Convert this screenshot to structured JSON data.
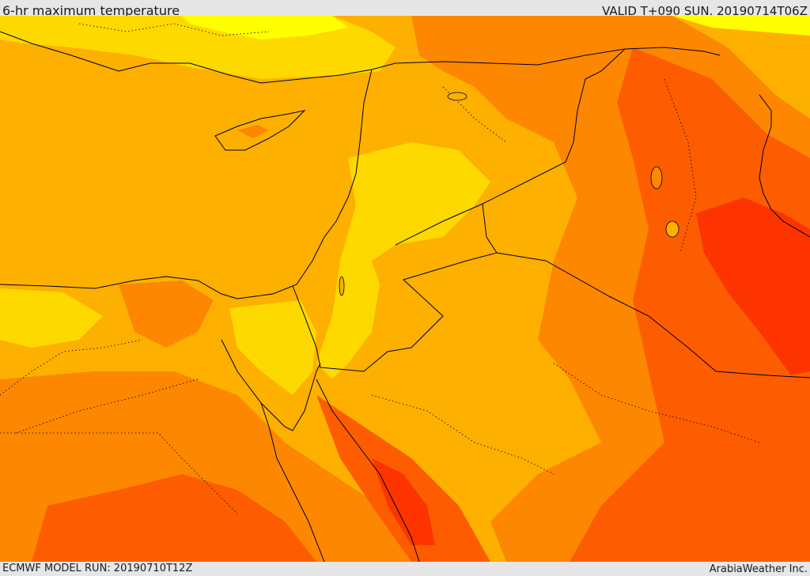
{
  "header": {
    "title": "6-hr maximum temperature",
    "valid": "VALID T+090 SUN. 20190714T06Z"
  },
  "footer": {
    "model_run": "ECMWF MODEL RUN: 20190710T12Z",
    "credit": "ArabiaWeather Inc."
  },
  "colors": {
    "pale_yellow": "#ffff00",
    "yellow": "#fed900",
    "amber": "#fdb000",
    "light_orange": "#fd8700",
    "orange": "#fd5d00",
    "red_orange": "#fd3400",
    "border_line": "#000000"
  }
}
